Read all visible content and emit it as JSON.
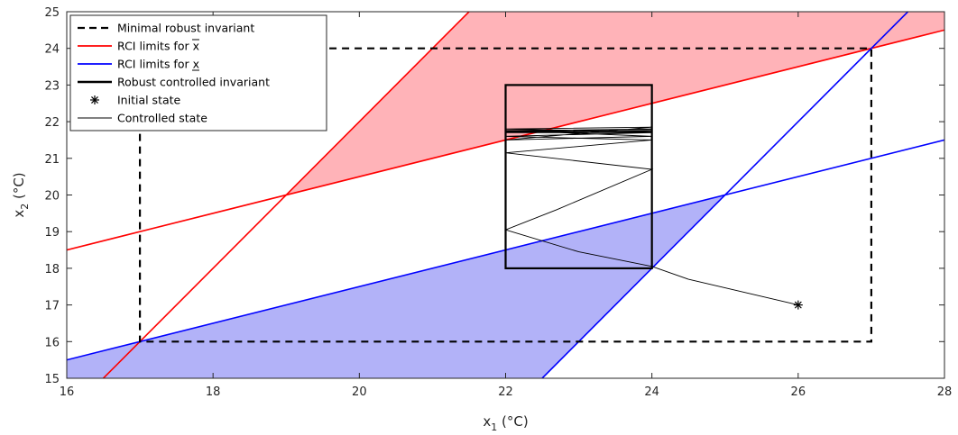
{
  "chart_data": {
    "type": "line",
    "xlabel": "x",
    "xlabel_sub": "1",
    "xlabel_unit": " (°C)",
    "ylabel": "x",
    "ylabel_sub": "2",
    "ylabel_unit": " (°C)",
    "xlim": [
      16,
      28
    ],
    "ylim": [
      15,
      25
    ],
    "xticks": [
      16,
      18,
      20,
      22,
      24,
      26,
      28
    ],
    "yticks": [
      15,
      16,
      17,
      18,
      19,
      20,
      21,
      22,
      23,
      24,
      25
    ],
    "grid": false,
    "legend_position": "top-left",
    "colors": {
      "red": "#ff0000",
      "blue": "#0000ff",
      "red_fill": "#ffb3b8",
      "blue_fill": "#b2b2f8",
      "black": "#000000"
    },
    "legend": [
      {
        "label": "Minimal robust invariant",
        "style": "dashed-black"
      },
      {
        "label": "RCI limits for x",
        "style": "red",
        "accent": "overline"
      },
      {
        "label": "RCI limits for x",
        "style": "blue",
        "accent": "underline"
      },
      {
        "label": "Robust controlled invariant",
        "style": "thick-black"
      },
      {
        "label": "Initial state",
        "style": "star"
      },
      {
        "label": "Controlled state",
        "style": "thin-black"
      }
    ],
    "minimal_robust_invariant": {
      "x": [
        17,
        27
      ],
      "y": [
        16,
        24
      ]
    },
    "robust_controlled_invariant": {
      "x": [
        22,
        24
      ],
      "y": [
        18,
        23
      ]
    },
    "initial_state": {
      "x": 26,
      "y": 17
    },
    "red_lines": [
      {
        "points": [
          [
            16,
            18.5
          ],
          [
            28,
            24.5
          ]
        ]
      },
      {
        "points": [
          [
            16.5,
            15
          ],
          [
            21.5,
            25
          ]
        ]
      }
    ],
    "blue_lines": [
      {
        "points": [
          [
            16,
            15.5
          ],
          [
            28,
            21.5
          ]
        ]
      },
      {
        "points": [
          [
            22.5,
            15
          ],
          [
            27.5,
            25
          ]
        ]
      }
    ],
    "red_region": [
      [
        19,
        20
      ],
      [
        21.5,
        25
      ],
      [
        28,
        25
      ],
      [
        28,
        24.5
      ],
      [
        27,
        24
      ]
    ],
    "blue_region": [
      [
        16,
        15
      ],
      [
        16,
        15.5
      ],
      [
        25,
        20
      ],
      [
        22.5,
        15
      ]
    ],
    "controlled_trajectory": [
      [
        26,
        17
      ],
      [
        24.5,
        17.7
      ],
      [
        24,
        18.05
      ],
      [
        23,
        18.45
      ],
      [
        22,
        19.05
      ],
      [
        22.7,
        19.6
      ],
      [
        24,
        20.7
      ],
      [
        22,
        21.15
      ],
      [
        24,
        21.5
      ],
      [
        22,
        21.6
      ],
      [
        24,
        21.7
      ],
      [
        22,
        21.7
      ],
      [
        24,
        21.75
      ],
      [
        22,
        21.72
      ],
      [
        24,
        21.8
      ],
      [
        22,
        21.75
      ],
      [
        24,
        21.78
      ],
      [
        22,
        21.76
      ],
      [
        24,
        21.6
      ],
      [
        22,
        21.5
      ],
      [
        24,
        21.85
      ],
      [
        22,
        21.8
      ],
      [
        24,
        21.72
      ],
      [
        22,
        21.74
      ]
    ]
  }
}
